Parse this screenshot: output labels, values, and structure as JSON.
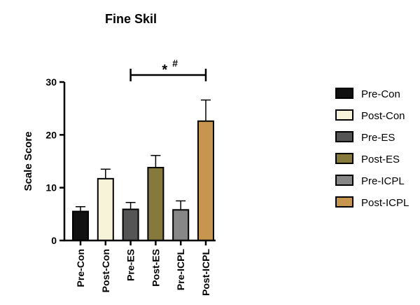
{
  "chart_data": {
    "type": "bar",
    "title": "Fine Skil",
    "xlabel": "",
    "ylabel": "Scale Score",
    "ylim": [
      0,
      30
    ],
    "yticks": [
      0,
      10,
      20,
      30
    ],
    "categories": [
      "Pre-Con",
      "Post-Con",
      "Pre-ES",
      "Post-ES",
      "Pre-ICPL",
      "Post-ICPL"
    ],
    "values": [
      5.5,
      11.7,
      5.9,
      13.8,
      5.8,
      22.6
    ],
    "errors": [
      0.9,
      1.8,
      1.3,
      2.3,
      1.7,
      4.0
    ],
    "colors": [
      "#111111",
      "#f7f3d8",
      "#555555",
      "#857a3b",
      "#878787",
      "#c8954f"
    ],
    "legend_position": "right",
    "grid": false,
    "annotation": {
      "text": "*",
      "superscript": "#",
      "from_category": "Pre-ES",
      "to_category": "Post-ICPL"
    }
  }
}
